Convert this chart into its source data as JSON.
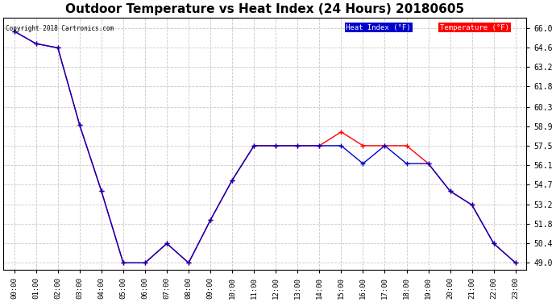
{
  "title": "Outdoor Temperature vs Heat Index (24 Hours) 20180605",
  "copyright": "Copyright 2018 Cartronics.com",
  "x_labels": [
    "00:00",
    "01:00",
    "02:00",
    "03:00",
    "04:00",
    "05:00",
    "06:00",
    "07:00",
    "08:00",
    "09:00",
    "10:00",
    "11:00",
    "12:00",
    "13:00",
    "14:00",
    "15:00",
    "16:00",
    "17:00",
    "18:00",
    "19:00",
    "20:00",
    "21:00",
    "22:00",
    "23:00"
  ],
  "temperature": [
    65.8,
    64.9,
    64.6,
    59.0,
    54.2,
    49.0,
    49.0,
    50.4,
    49.0,
    52.1,
    55.0,
    57.5,
    57.5,
    57.5,
    57.5,
    58.5,
    57.5,
    57.5,
    57.5,
    56.2,
    54.2,
    53.2,
    50.4,
    49.0
  ],
  "heat_index": [
    65.8,
    64.9,
    64.6,
    59.0,
    54.2,
    49.0,
    49.0,
    50.4,
    49.0,
    52.1,
    55.0,
    57.5,
    57.5,
    57.5,
    57.5,
    57.5,
    56.2,
    57.5,
    56.2,
    56.2,
    54.2,
    53.2,
    50.4,
    49.0
  ],
  "temp_color": "#ff0000",
  "heat_index_color": "#0000cc",
  "ylim_min": 48.5,
  "ylim_max": 66.8,
  "yticks": [
    49.0,
    50.4,
    51.8,
    53.2,
    54.7,
    56.1,
    57.5,
    58.9,
    60.3,
    61.8,
    63.2,
    64.6,
    66.0
  ],
  "background_color": "#ffffff",
  "grid_color": "#c8c8c8",
  "title_fontsize": 11,
  "legend_heat_label": "Heat Index (°F)",
  "legend_temp_label": "Temperature (°F)",
  "legend_heat_bg": "#0000cc",
  "legend_temp_bg": "#ff0000"
}
